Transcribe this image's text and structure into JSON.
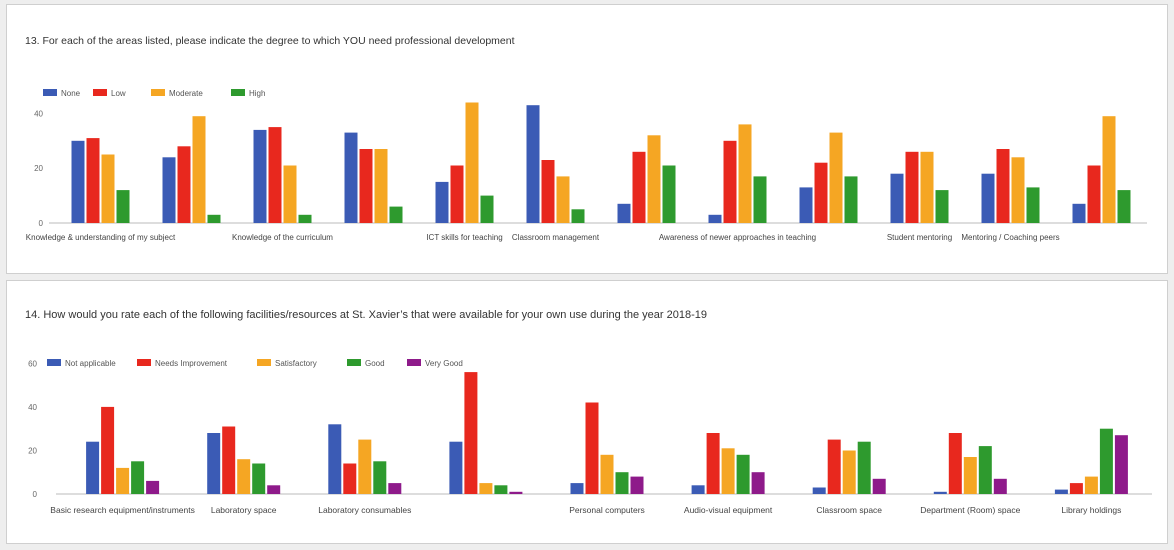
{
  "chart_data": [
    {
      "type": "bar",
      "title": "13. For each of the areas listed, please indicate the degree to which YOU need professional development",
      "categories": [
        "Knowledge & understanding of my subject",
        "",
        "Knowledge of the curriculum",
        "",
        "ICT skills for teaching",
        "Classroom management",
        "",
        "Awareness of newer approaches in teaching",
        "",
        "Student mentoring",
        "Mentoring / Coaching peers",
        ""
      ],
      "series": [
        {
          "name": "None",
          "color": "#3b5bb5",
          "values": [
            30,
            24,
            34,
            33,
            15,
            43,
            7,
            3,
            13,
            18,
            18,
            7
          ]
        },
        {
          "name": "Low",
          "color": "#e8281e",
          "values": [
            31,
            28,
            35,
            27,
            21,
            23,
            26,
            30,
            22,
            26,
            27,
            21
          ]
        },
        {
          "name": "Moderate",
          "color": "#f5a623",
          "values": [
            25,
            39,
            21,
            27,
            44,
            17,
            32,
            36,
            33,
            26,
            24,
            39
          ]
        },
        {
          "name": "High",
          "color": "#2e9a2e",
          "values": [
            12,
            3,
            3,
            6,
            10,
            5,
            21,
            17,
            17,
            12,
            13,
            12
          ]
        }
      ],
      "yticks": [
        0,
        20,
        40
      ],
      "ylim": [
        0,
        46
      ],
      "xlabel": "",
      "ylabel": "",
      "grid": false,
      "legend": "top-left"
    },
    {
      "type": "bar",
      "title": "14. How would you rate each of the following facilities/resources at St. Xavier’s that were available for your own use during the year 2018-19",
      "categories": [
        "Basic research equipment/instruments",
        "Laboratory space",
        "Laboratory consumables",
        "",
        "Personal computers",
        "Audio-visual equipment",
        "Classroom space",
        "Department (Room) space",
        "Library holdings"
      ],
      "series": [
        {
          "name": "Not applicable",
          "color": "#3b5bb5",
          "values": [
            24,
            28,
            32,
            24,
            5,
            4,
            3,
            1,
            2
          ]
        },
        {
          "name": "Needs Improvement",
          "color": "#e8281e",
          "values": [
            40,
            31,
            14,
            56,
            42,
            28,
            25,
            28,
            5
          ]
        },
        {
          "name": "Satisfactory",
          "color": "#f5a623",
          "values": [
            12,
            16,
            25,
            5,
            18,
            21,
            20,
            17,
            8
          ]
        },
        {
          "name": "Good",
          "color": "#2e9a2e",
          "values": [
            15,
            14,
            15,
            4,
            10,
            18,
            24,
            22,
            30
          ]
        },
        {
          "name": "Very Good",
          "color": "#8e1a8a",
          "values": [
            6,
            4,
            5,
            1,
            8,
            10,
            7,
            7,
            27
          ]
        }
      ],
      "yticks": [
        0,
        20,
        40,
        60
      ],
      "ylim": [
        0,
        62
      ],
      "xlabel": "",
      "ylabel": "",
      "grid": false,
      "legend": "top-left"
    }
  ]
}
